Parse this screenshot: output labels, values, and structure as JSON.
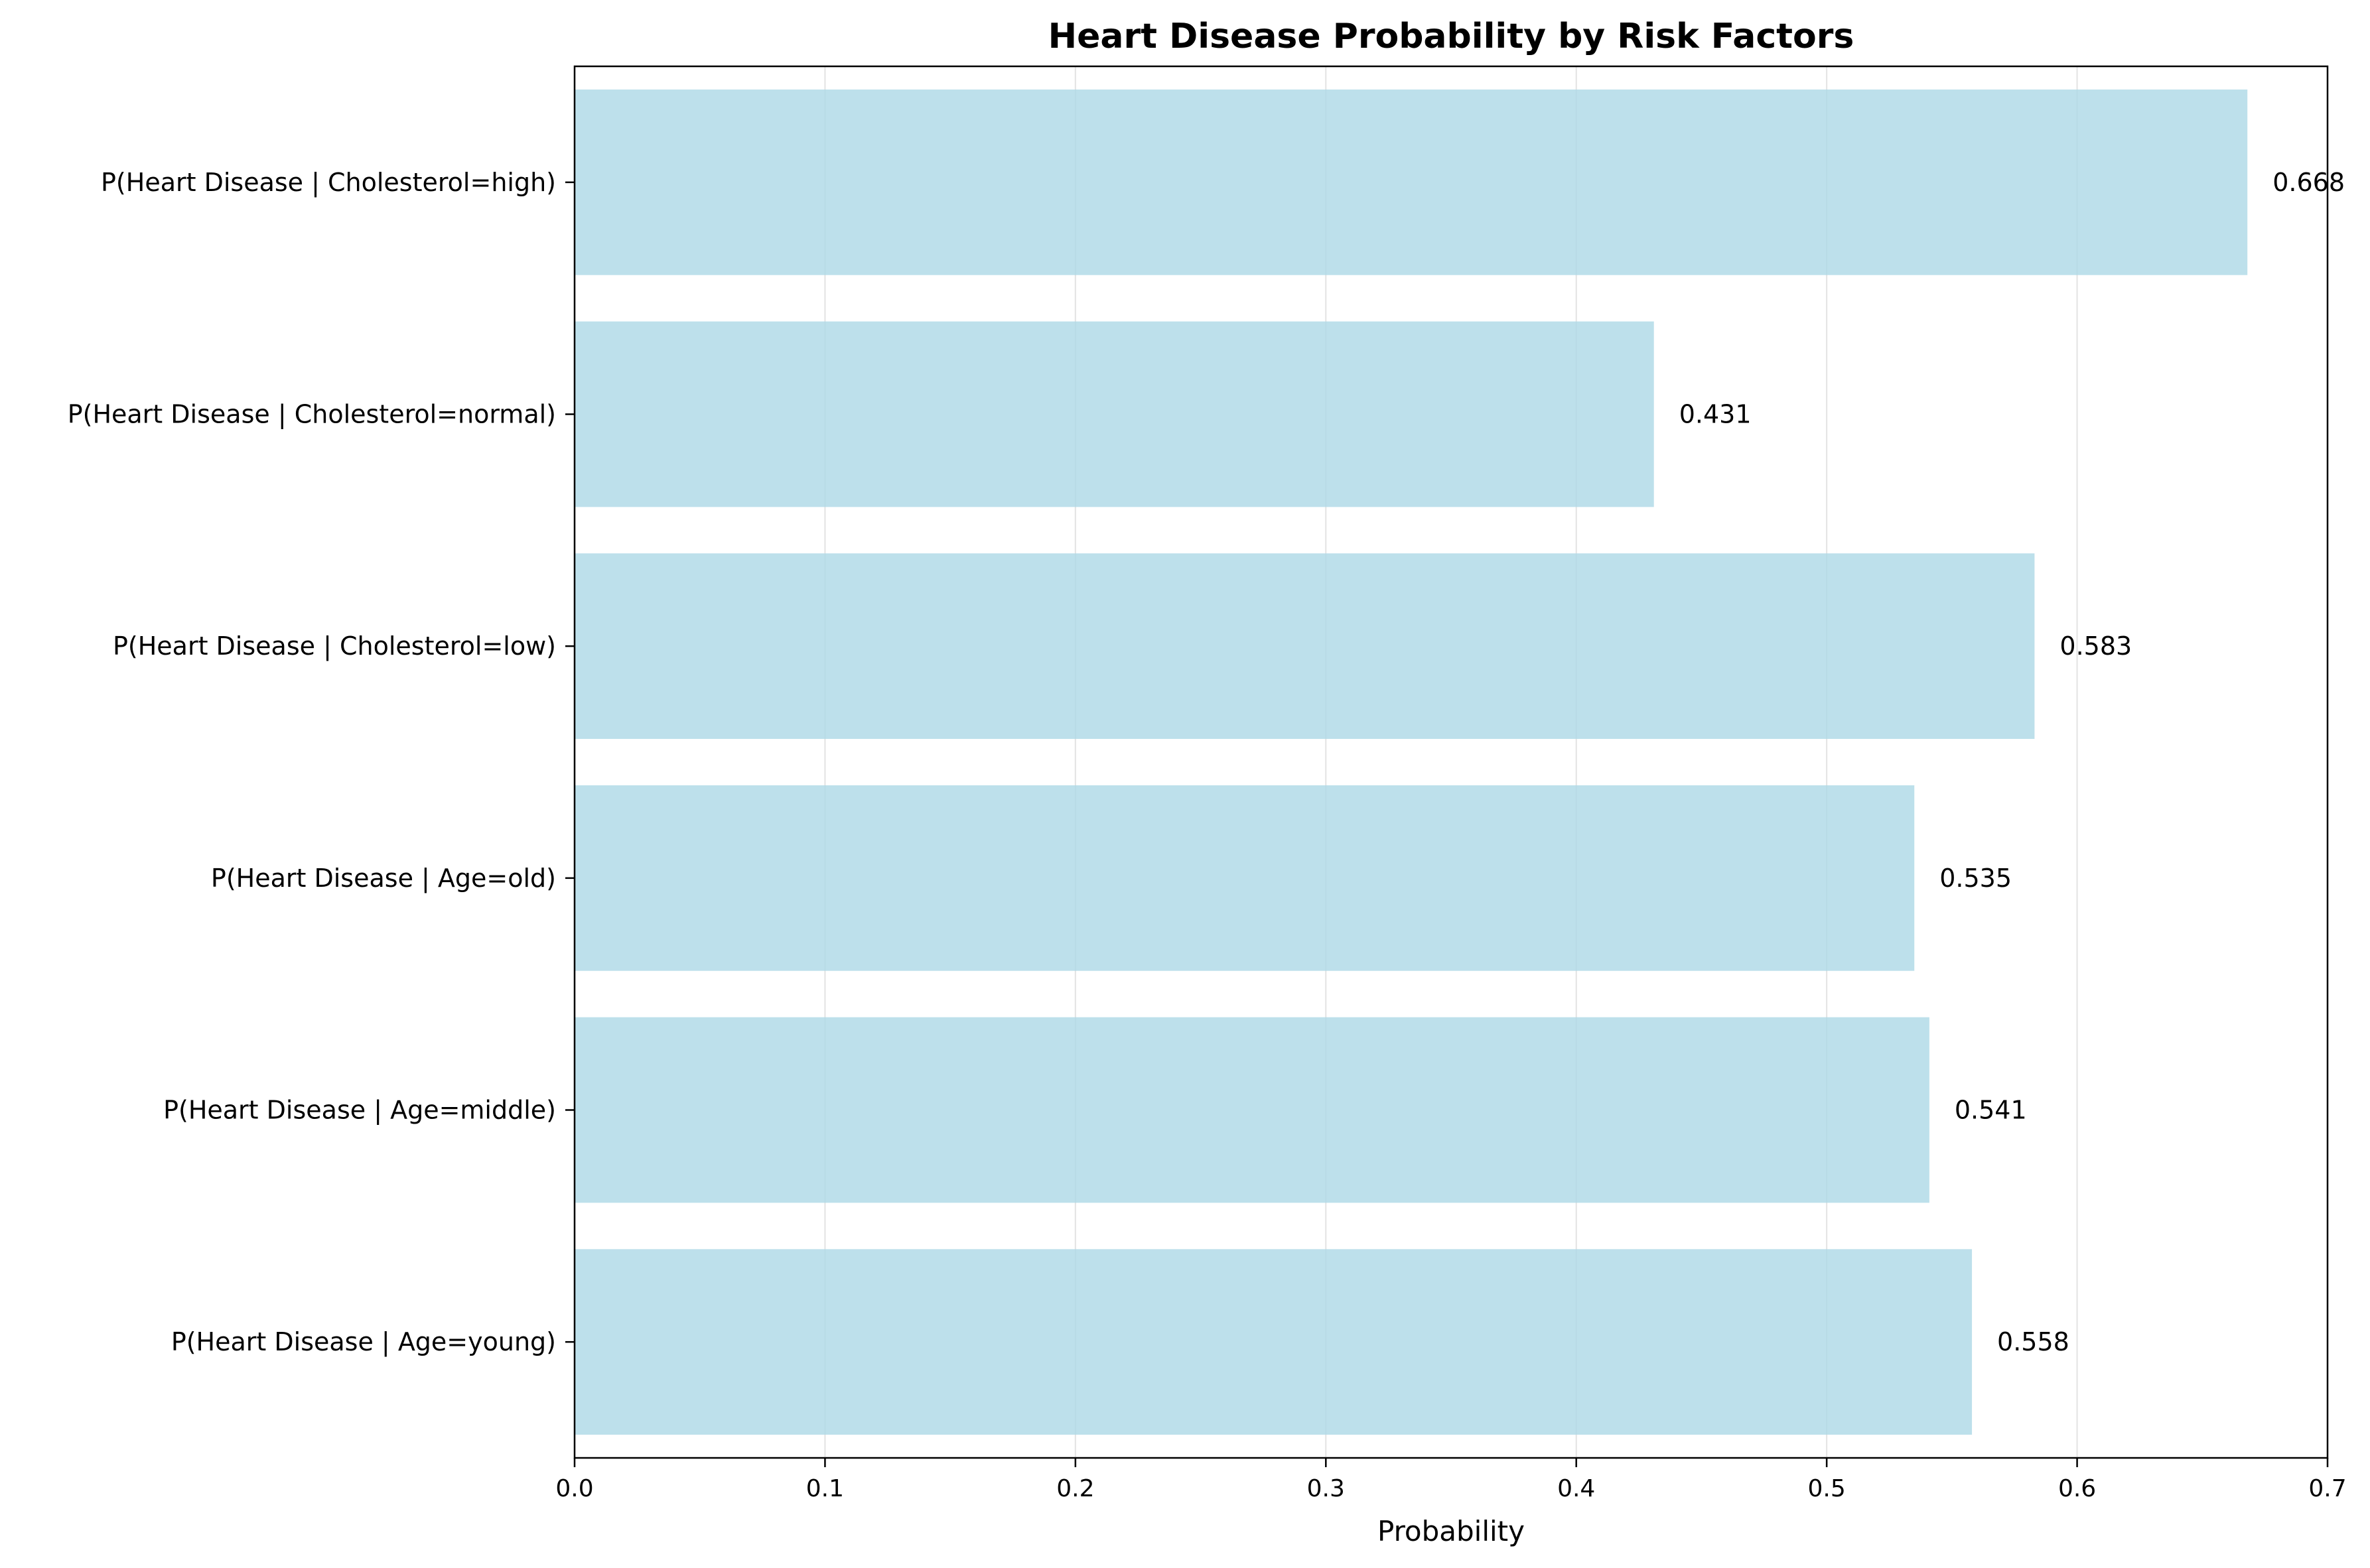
{
  "chart_data": {
    "type": "bar",
    "orientation": "horizontal",
    "title": "Heart Disease Probability by Risk Factors",
    "xlabel": "Probability",
    "ylabel": "",
    "xlim": [
      0,
      0.7
    ],
    "xticks": [
      0.0,
      0.1,
      0.2,
      0.3,
      0.4,
      0.5,
      0.6,
      0.7
    ],
    "xtick_labels": [
      "0.0",
      "0.1",
      "0.2",
      "0.3",
      "0.4",
      "0.5",
      "0.6",
      "0.7"
    ],
    "grid": "vertical",
    "bar_color": "#add8e6",
    "categories": [
      "P(Heart Disease | Cholesterol=high)",
      "P(Heart Disease | Cholesterol=normal)",
      "P(Heart Disease | Cholesterol=low)",
      "P(Heart Disease | Age=old)",
      "P(Heart Disease | Age=middle)",
      "P(Heart Disease | Age=young)"
    ],
    "values": [
      0.668,
      0.431,
      0.583,
      0.535,
      0.541,
      0.558
    ],
    "value_labels": [
      "0.668",
      "0.431",
      "0.583",
      "0.535",
      "0.541",
      "0.558"
    ]
  }
}
